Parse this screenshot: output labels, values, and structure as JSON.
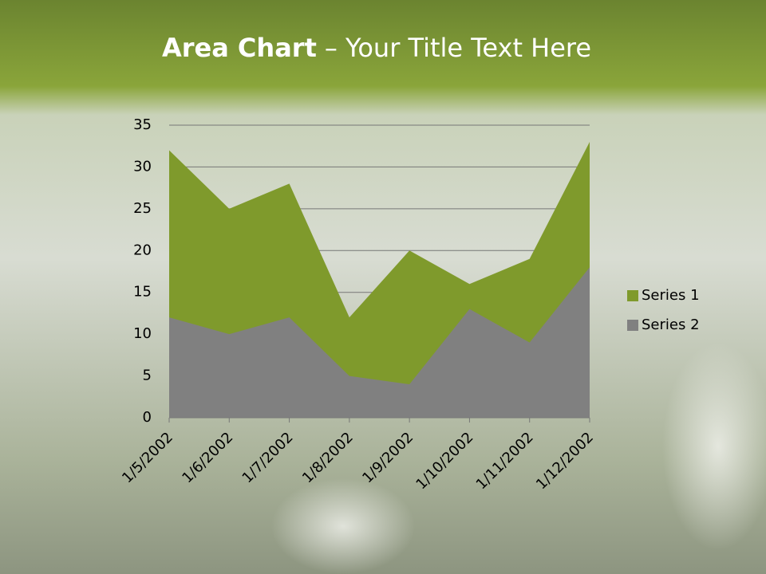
{
  "chart_data": {
    "type": "area",
    "title": "Area Chart",
    "subtitle": "– Your Title Text Here",
    "categories": [
      "1/5/2002",
      "1/6/2002",
      "1/7/2002",
      "1/8/2002",
      "1/9/2002",
      "1/10/2002",
      "1/11/2002",
      "1/12/2002"
    ],
    "series": [
      {
        "name": "Series 1",
        "color": "#7f9a2c",
        "values": [
          32,
          25,
          28,
          12,
          20,
          16,
          19,
          33
        ]
      },
      {
        "name": "Series 2",
        "color": "#808080",
        "values": [
          12,
          10,
          12,
          5,
          4,
          13,
          9,
          18
        ]
      }
    ],
    "ylim": [
      0,
      35
    ],
    "yticks": [
      0,
      5,
      10,
      15,
      20,
      25,
      30,
      35
    ],
    "grid": true,
    "legend": "right"
  }
}
